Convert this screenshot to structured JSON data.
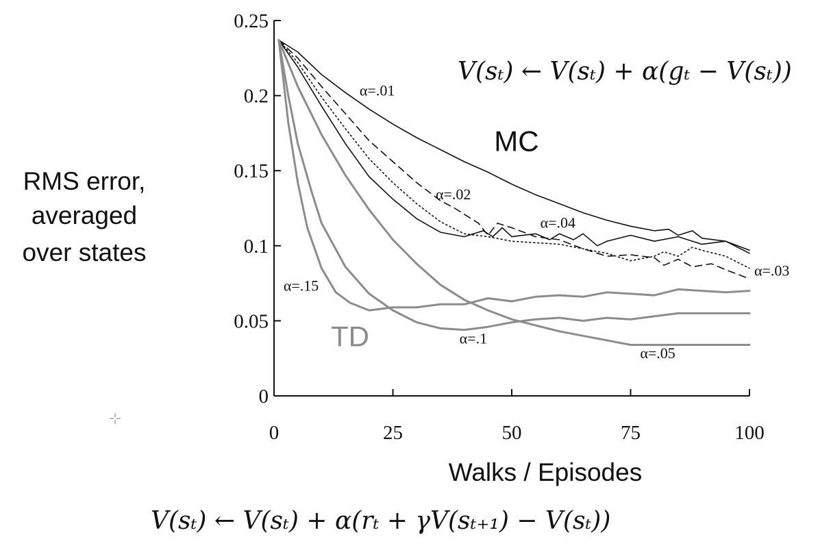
{
  "chart_data": {
    "type": "line",
    "title": "",
    "xlabel": "Walks / Episodes",
    "ylabel_lines": [
      "RMS error,",
      "averaged",
      "over states"
    ],
    "xlim": [
      0,
      100
    ],
    "ylim": [
      0,
      0.25
    ],
    "x_ticks": [
      0,
      25,
      50,
      75,
      100
    ],
    "x_tick_labels": [
      "0",
      "25",
      "50",
      "75",
      "100"
    ],
    "y_ticks": [
      0,
      0.05,
      0.1,
      0.15,
      0.2,
      0.25
    ],
    "y_tick_labels": [
      "0",
      "0.05",
      "0.1",
      "0.15",
      "0.2",
      "0.25"
    ],
    "grid": false,
    "method_labels": [
      {
        "text": "MC",
        "color": "#111111",
        "x": 51,
        "y": 0.163
      },
      {
        "text": "TD",
        "color": "#8c8c8c",
        "x": 16,
        "y": 0.033
      }
    ],
    "series": [
      {
        "name": "α=.01",
        "method": "MC",
        "color": "#111111",
        "dash": "solid",
        "label_pos": {
          "x": 18,
          "y": 0.2
        },
        "points": [
          [
            1,
            0.237
          ],
          [
            5,
            0.229
          ],
          [
            10,
            0.214
          ],
          [
            15,
            0.202
          ],
          [
            20,
            0.191
          ],
          [
            25,
            0.181
          ],
          [
            30,
            0.172
          ],
          [
            35,
            0.164
          ],
          [
            40,
            0.156
          ],
          [
            45,
            0.149
          ],
          [
            50,
            0.141
          ],
          [
            55,
            0.134
          ],
          [
            60,
            0.128
          ],
          [
            65,
            0.122
          ],
          [
            70,
            0.117
          ],
          [
            75,
            0.113
          ],
          [
            80,
            0.11
          ],
          [
            83,
            0.111
          ],
          [
            85,
            0.107
          ],
          [
            88,
            0.11
          ],
          [
            90,
            0.105
          ],
          [
            95,
            0.103
          ],
          [
            100,
            0.097
          ]
        ]
      },
      {
        "name": "α=.02",
        "method": "MC",
        "color": "#111111",
        "dash": "long",
        "label_pos": {
          "x": 34,
          "y": 0.131
        },
        "points": [
          [
            1,
            0.237
          ],
          [
            5,
            0.225
          ],
          [
            10,
            0.206
          ],
          [
            15,
            0.188
          ],
          [
            20,
            0.17
          ],
          [
            25,
            0.156
          ],
          [
            30,
            0.142
          ],
          [
            35,
            0.13
          ],
          [
            38,
            0.125
          ],
          [
            40,
            0.121
          ],
          [
            43,
            0.115
          ],
          [
            45,
            0.107
          ],
          [
            47,
            0.115
          ],
          [
            50,
            0.112
          ],
          [
            55,
            0.106
          ],
          [
            60,
            0.104
          ],
          [
            65,
            0.098
          ],
          [
            70,
            0.093
          ],
          [
            75,
            0.094
          ],
          [
            80,
            0.092
          ],
          [
            82,
            0.087
          ],
          [
            85,
            0.091
          ],
          [
            88,
            0.086
          ],
          [
            92,
            0.088
          ],
          [
            95,
            0.084
          ],
          [
            100,
            0.078
          ]
        ]
      },
      {
        "name": "α=.03",
        "method": "MC",
        "color": "#111111",
        "dash": "dot",
        "label_pos": {
          "x": 101,
          "y": 0.08
        },
        "points": [
          [
            1,
            0.237
          ],
          [
            5,
            0.222
          ],
          [
            10,
            0.199
          ],
          [
            15,
            0.178
          ],
          [
            20,
            0.158
          ],
          [
            25,
            0.142
          ],
          [
            30,
            0.128
          ],
          [
            35,
            0.116
          ],
          [
            40,
            0.108
          ],
          [
            45,
            0.106
          ],
          [
            50,
            0.103
          ],
          [
            55,
            0.102
          ],
          [
            60,
            0.101
          ],
          [
            65,
            0.098
          ],
          [
            70,
            0.095
          ],
          [
            75,
            0.09
          ],
          [
            80,
            0.093
          ],
          [
            82,
            0.096
          ],
          [
            85,
            0.093
          ],
          [
            88,
            0.099
          ],
          [
            90,
            0.097
          ],
          [
            95,
            0.093
          ],
          [
            100,
            0.085
          ]
        ]
      },
      {
        "name": "α=.04",
        "method": "MC",
        "color": "#111111",
        "dash": "solid",
        "label_pos": {
          "x": 56,
          "y": 0.112
        },
        "points": [
          [
            1,
            0.237
          ],
          [
            5,
            0.219
          ],
          [
            10,
            0.193
          ],
          [
            15,
            0.168
          ],
          [
            20,
            0.146
          ],
          [
            25,
            0.131
          ],
          [
            30,
            0.118
          ],
          [
            35,
            0.109
          ],
          [
            40,
            0.106
          ],
          [
            44,
            0.11
          ],
          [
            46,
            0.106
          ],
          [
            48,
            0.112
          ],
          [
            50,
            0.106
          ],
          [
            55,
            0.108
          ],
          [
            58,
            0.104
          ],
          [
            60,
            0.108
          ],
          [
            63,
            0.104
          ],
          [
            65,
            0.108
          ],
          [
            68,
            0.1
          ],
          [
            70,
            0.103
          ],
          [
            75,
            0.107
          ],
          [
            80,
            0.103
          ],
          [
            85,
            0.106
          ],
          [
            90,
            0.101
          ],
          [
            95,
            0.103
          ],
          [
            100,
            0.095
          ]
        ]
      },
      {
        "name": "α=.05",
        "method": "TD",
        "color": "#8c8c8c",
        "dash": "solid",
        "label_pos": {
          "x": 77,
          "y": 0.025
        },
        "points": [
          [
            1,
            0.237
          ],
          [
            5,
            0.206
          ],
          [
            10,
            0.174
          ],
          [
            15,
            0.147
          ],
          [
            20,
            0.124
          ],
          [
            25,
            0.104
          ],
          [
            30,
            0.088
          ],
          [
            35,
            0.074
          ],
          [
            40,
            0.064
          ],
          [
            45,
            0.057
          ],
          [
            50,
            0.051
          ],
          [
            55,
            0.047
          ],
          [
            60,
            0.043
          ],
          [
            65,
            0.04
          ],
          [
            70,
            0.037
          ],
          [
            75,
            0.034
          ],
          [
            80,
            0.034
          ],
          [
            85,
            0.034
          ],
          [
            90,
            0.034
          ],
          [
            100,
            0.034
          ]
        ]
      },
      {
        "name": "α=.1",
        "method": "TD",
        "color": "#8c8c8c",
        "dash": "solid",
        "label_pos": {
          "x": 39,
          "y": 0.035
        },
        "points": [
          [
            1,
            0.237
          ],
          [
            3,
            0.2
          ],
          [
            5,
            0.168
          ],
          [
            8,
            0.135
          ],
          [
            10,
            0.115
          ],
          [
            15,
            0.086
          ],
          [
            20,
            0.068
          ],
          [
            25,
            0.057
          ],
          [
            30,
            0.049
          ],
          [
            35,
            0.045
          ],
          [
            40,
            0.044
          ],
          [
            45,
            0.046
          ],
          [
            50,
            0.049
          ],
          [
            55,
            0.051
          ],
          [
            60,
            0.052
          ],
          [
            65,
            0.05
          ],
          [
            70,
            0.052
          ],
          [
            75,
            0.051
          ],
          [
            80,
            0.053
          ],
          [
            85,
            0.055
          ],
          [
            90,
            0.055
          ],
          [
            100,
            0.055
          ]
        ]
      },
      {
        "name": "α=.15",
        "method": "TD",
        "color": "#8c8c8c",
        "dash": "solid",
        "label_pos": {
          "x": 2,
          "y": 0.07
        },
        "points": [
          [
            1,
            0.237
          ],
          [
            3,
            0.182
          ],
          [
            5,
            0.142
          ],
          [
            7,
            0.112
          ],
          [
            10,
            0.085
          ],
          [
            13,
            0.069
          ],
          [
            16,
            0.062
          ],
          [
            20,
            0.057
          ],
          [
            25,
            0.059
          ],
          [
            30,
            0.059
          ],
          [
            35,
            0.061
          ],
          [
            40,
            0.061
          ],
          [
            45,
            0.065
          ],
          [
            50,
            0.063
          ],
          [
            55,
            0.066
          ],
          [
            60,
            0.067
          ],
          [
            65,
            0.066
          ],
          [
            70,
            0.069
          ],
          [
            75,
            0.068
          ],
          [
            80,
            0.067
          ],
          [
            85,
            0.071
          ],
          [
            90,
            0.07
          ],
          [
            95,
            0.069
          ],
          [
            100,
            0.07
          ]
        ]
      }
    ]
  },
  "formulas": {
    "mc": "V(sₜ) ← V(sₜ) + α(gₜ − V(sₜ))",
    "td": "V(sₜ) ← V(sₜ) + α(rₜ + γV(sₜ₊₁) − V(sₜ))"
  }
}
